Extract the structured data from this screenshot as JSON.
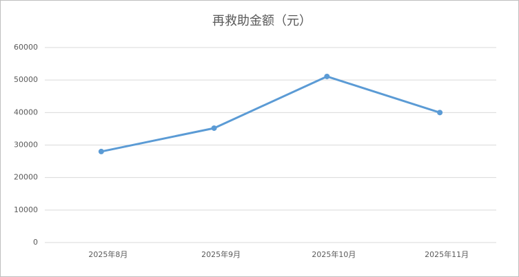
{
  "chart_data": {
    "type": "line",
    "title": "再救助金额（元）",
    "categories": [
      "2025年8月",
      "2025年9月",
      "2025年10月",
      "2025年11月"
    ],
    "series": [
      {
        "name": "再救助金额",
        "color": "#5b9bd5",
        "values": [
          28000,
          35200,
          51100,
          40000
        ]
      }
    ],
    "ylim": [
      0,
      60000
    ],
    "yticks": [
      0,
      10000,
      20000,
      30000,
      40000,
      50000,
      60000
    ],
    "grid": true
  }
}
